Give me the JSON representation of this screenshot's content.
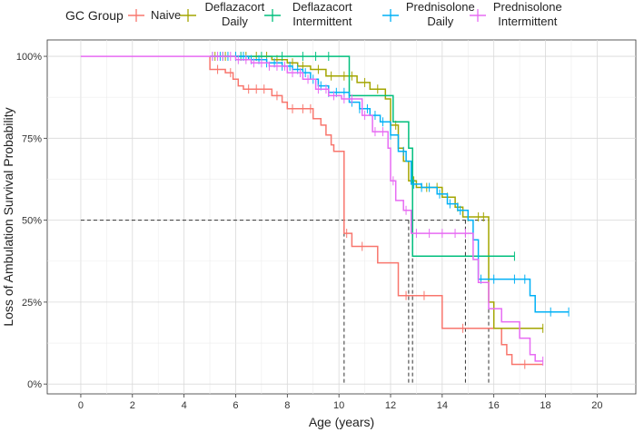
{
  "chart_data": {
    "type": "line",
    "subtype": "kaplan-meier step curves",
    "xlabel": "Age (years)",
    "ylabel": "Loss of Ambulation Survival Probability",
    "xlim": [
      -1.3,
      21.5
    ],
    "ylim": [
      -0.03,
      1.05
    ],
    "xticks": [
      0,
      2,
      4,
      6,
      8,
      10,
      12,
      14,
      16,
      18,
      20
    ],
    "xtick_labels": [
      "0",
      "2",
      "4",
      "6",
      "8",
      "10",
      "12",
      "14",
      "16",
      "18",
      "20"
    ],
    "yticks": [
      0,
      0.25,
      0.5,
      0.75,
      1.0
    ],
    "ytick_labels": [
      "0%",
      "25%",
      "50%",
      "75%",
      "100%"
    ],
    "grid": true,
    "legend": {
      "title": "GC Group",
      "placement": "top",
      "entries": [
        "Naive",
        "Deflazacort\nDaily",
        "Deflazacort\nIntermittent",
        "Prednisolone\nDaily",
        "Prednisolone\nIntermittent"
      ]
    },
    "series": [
      {
        "name": "Naive",
        "color": "#F8766D",
        "steps": [
          [
            5.0,
            1.0
          ],
          [
            5.0,
            0.96
          ],
          [
            5.6,
            0.95
          ],
          [
            5.9,
            0.93
          ],
          [
            6.1,
            0.91
          ],
          [
            6.3,
            0.9
          ],
          [
            7.4,
            0.88
          ],
          [
            7.8,
            0.86
          ],
          [
            8.0,
            0.84
          ],
          [
            9.0,
            0.81
          ],
          [
            9.3,
            0.79
          ],
          [
            9.5,
            0.76
          ],
          [
            9.7,
            0.73
          ],
          [
            9.8,
            0.71
          ],
          [
            10.2,
            0.46
          ],
          [
            10.5,
            0.42
          ],
          [
            11.5,
            0.37
          ],
          [
            12.3,
            0.27
          ],
          [
            14.0,
            0.17
          ],
          [
            16.3,
            0.12
          ],
          [
            16.5,
            0.09
          ],
          [
            16.7,
            0.06
          ],
          [
            17.9,
            0.06
          ]
        ],
        "censor_x": [
          5.3,
          5.8,
          6.5,
          6.8,
          7.1,
          7.6,
          8.2,
          8.6,
          8.9,
          10.3,
          10.9,
          12.6,
          13.3,
          14.8,
          17.2
        ]
      },
      {
        "name": "Deflazacort Daily",
        "color": "#A3A500",
        "steps": [
          [
            5.0,
            1.0
          ],
          [
            7.4,
            0.99
          ],
          [
            8.0,
            0.98
          ],
          [
            8.4,
            0.97
          ],
          [
            8.9,
            0.96
          ],
          [
            9.5,
            0.94
          ],
          [
            10.7,
            0.92
          ],
          [
            11.2,
            0.9
          ],
          [
            11.8,
            0.87
          ],
          [
            12.0,
            0.79
          ],
          [
            12.3,
            0.72
          ],
          [
            12.5,
            0.68
          ],
          [
            12.7,
            0.62
          ],
          [
            13.0,
            0.6
          ],
          [
            14.0,
            0.57
          ],
          [
            14.5,
            0.54
          ],
          [
            14.8,
            0.51
          ],
          [
            15.8,
            0.25
          ],
          [
            16.0,
            0.17
          ],
          [
            17.9,
            0.17
          ]
        ],
        "censor_x": [
          5.2,
          5.6,
          6.0,
          6.4,
          6.8,
          7.2,
          7.6,
          8.2,
          8.6,
          9.2,
          9.7,
          10.2,
          10.5,
          11.0,
          11.5,
          12.2,
          12.9,
          13.4,
          13.8,
          14.2,
          14.6,
          15.0,
          15.4,
          15.6,
          17.9
        ]
      },
      {
        "name": "Deflazacort Intermittent",
        "color": "#00BF7D",
        "steps": [
          [
            5.0,
            1.0
          ],
          [
            10.4,
            1.0
          ],
          [
            10.4,
            0.88
          ],
          [
            12.1,
            0.88
          ],
          [
            12.1,
            0.8
          ],
          [
            12.7,
            0.8
          ],
          [
            12.7,
            0.72
          ],
          [
            12.85,
            0.72
          ],
          [
            12.85,
            0.39
          ],
          [
            16.8,
            0.39
          ]
        ],
        "censor_x": [
          5.5,
          6.2,
          7.0,
          7.8,
          8.6,
          9.1,
          9.6,
          16.8
        ]
      },
      {
        "name": "Prednisolone Daily",
        "color": "#00B0F6",
        "steps": [
          [
            5.0,
            1.0
          ],
          [
            6.5,
            0.99
          ],
          [
            7.2,
            0.98
          ],
          [
            7.8,
            0.97
          ],
          [
            8.2,
            0.96
          ],
          [
            8.6,
            0.95
          ],
          [
            8.9,
            0.93
          ],
          [
            9.2,
            0.91
          ],
          [
            9.6,
            0.89
          ],
          [
            10.4,
            0.86
          ],
          [
            10.8,
            0.84
          ],
          [
            11.2,
            0.82
          ],
          [
            11.6,
            0.8
          ],
          [
            12.0,
            0.76
          ],
          [
            12.3,
            0.71
          ],
          [
            12.6,
            0.68
          ],
          [
            12.8,
            0.61
          ],
          [
            13.2,
            0.6
          ],
          [
            13.8,
            0.58
          ],
          [
            14.2,
            0.55
          ],
          [
            14.6,
            0.53
          ],
          [
            15.0,
            0.5
          ],
          [
            15.2,
            0.44
          ],
          [
            15.4,
            0.32
          ],
          [
            17.4,
            0.27
          ],
          [
            17.6,
            0.22
          ],
          [
            18.9,
            0.22
          ]
        ],
        "censor_x": [
          5.1,
          5.4,
          5.7,
          6.0,
          6.3,
          6.6,
          6.9,
          7.2,
          7.5,
          7.8,
          8.1,
          8.4,
          8.7,
          9.0,
          9.3,
          9.6,
          9.9,
          10.2,
          10.5,
          10.8,
          11.1,
          11.4,
          11.7,
          12.0,
          12.5,
          12.9,
          13.2,
          13.5,
          13.9,
          14.3,
          14.7,
          15.5,
          16.0,
          16.8,
          17.2,
          18.2,
          18.9
        ]
      },
      {
        "name": "Prednisolone Intermittent",
        "color": "#E76BF3",
        "steps": [
          [
            0.0,
            1.0
          ],
          [
            6.0,
            0.99
          ],
          [
            6.6,
            0.98
          ],
          [
            7.3,
            0.97
          ],
          [
            8.0,
            0.95
          ],
          [
            8.6,
            0.93
          ],
          [
            9.1,
            0.9
          ],
          [
            9.6,
            0.88
          ],
          [
            10.1,
            0.87
          ],
          [
            10.9,
            0.82
          ],
          [
            11.3,
            0.77
          ],
          [
            11.9,
            0.72
          ],
          [
            12.0,
            0.62
          ],
          [
            12.2,
            0.56
          ],
          [
            12.5,
            0.53
          ],
          [
            12.8,
            0.46
          ],
          [
            15.2,
            0.38
          ],
          [
            15.4,
            0.31
          ],
          [
            15.8,
            0.23
          ],
          [
            16.3,
            0.19
          ],
          [
            17.0,
            0.14
          ],
          [
            17.4,
            0.09
          ],
          [
            17.6,
            0.07
          ],
          [
            17.9,
            0.07
          ]
        ],
        "censor_x": [
          5.1,
          5.3,
          5.5,
          5.8,
          6.1,
          6.4,
          6.7,
          7.0,
          7.3,
          7.6,
          7.9,
          8.2,
          8.5,
          8.8,
          9.2,
          9.5,
          9.8,
          10.2,
          10.5,
          11.0,
          11.4,
          11.7,
          12.1,
          12.6,
          13.0,
          13.5,
          14.0,
          14.5,
          14.9,
          17.9
        ]
      }
    ],
    "median_reference": {
      "y": 0.5,
      "x_values": [
        10.2,
        12.7,
        12.85,
        14.9,
        15.8
      ]
    }
  }
}
